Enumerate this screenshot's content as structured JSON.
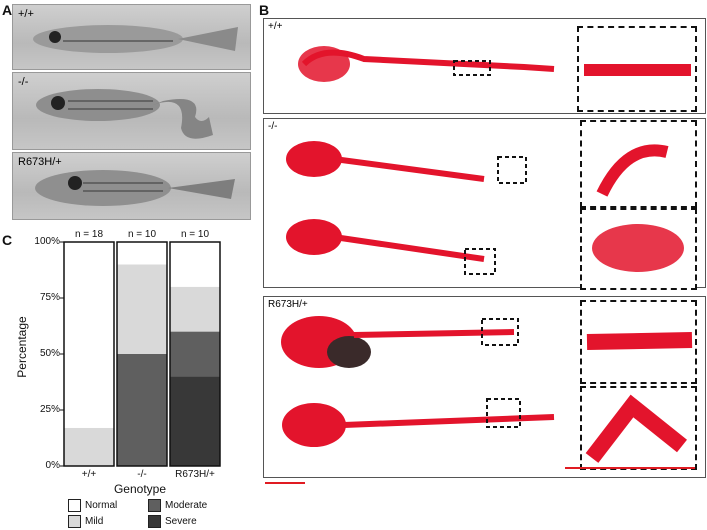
{
  "panels": {
    "a": "A",
    "b": "B",
    "c": "C"
  },
  "genotypes": {
    "wt": "+/+",
    "ko": "-/-",
    "mut": "R673H/+"
  },
  "colors": {
    "normal": "#ffffff",
    "mild": "#d9d9d9",
    "moderate": "#5f5f5f",
    "severe": "#383838",
    "stain": "#e3142c",
    "scale_bar": "#e01b22"
  },
  "chart_data": {
    "type": "bar",
    "stacked": true,
    "xlabel": "Genotype",
    "ylabel": "Percentage",
    "categories": [
      "+/+",
      "-/-",
      "R673H/+"
    ],
    "n_labels": [
      "n = 18",
      "n = 10",
      "n = 10"
    ],
    "yticks": [
      "0%",
      "25%",
      "50%",
      "75%",
      "100%"
    ],
    "ylim": [
      0,
      100
    ],
    "series": [
      {
        "name": "Severe",
        "color": "#383838",
        "values": [
          0,
          0,
          40
        ]
      },
      {
        "name": "Moderate",
        "color": "#5f5f5f",
        "values": [
          0,
          50,
          20
        ]
      },
      {
        "name": "Mild",
        "color": "#d9d9d9",
        "values": [
          17,
          40,
          20
        ]
      },
      {
        "name": "Normal",
        "color": "#ffffff",
        "values": [
          83,
          10,
          20
        ]
      }
    ],
    "legend": [
      "Normal",
      "Moderate",
      "Mild",
      "Severe"
    ],
    "legend_placement": "bottom"
  }
}
